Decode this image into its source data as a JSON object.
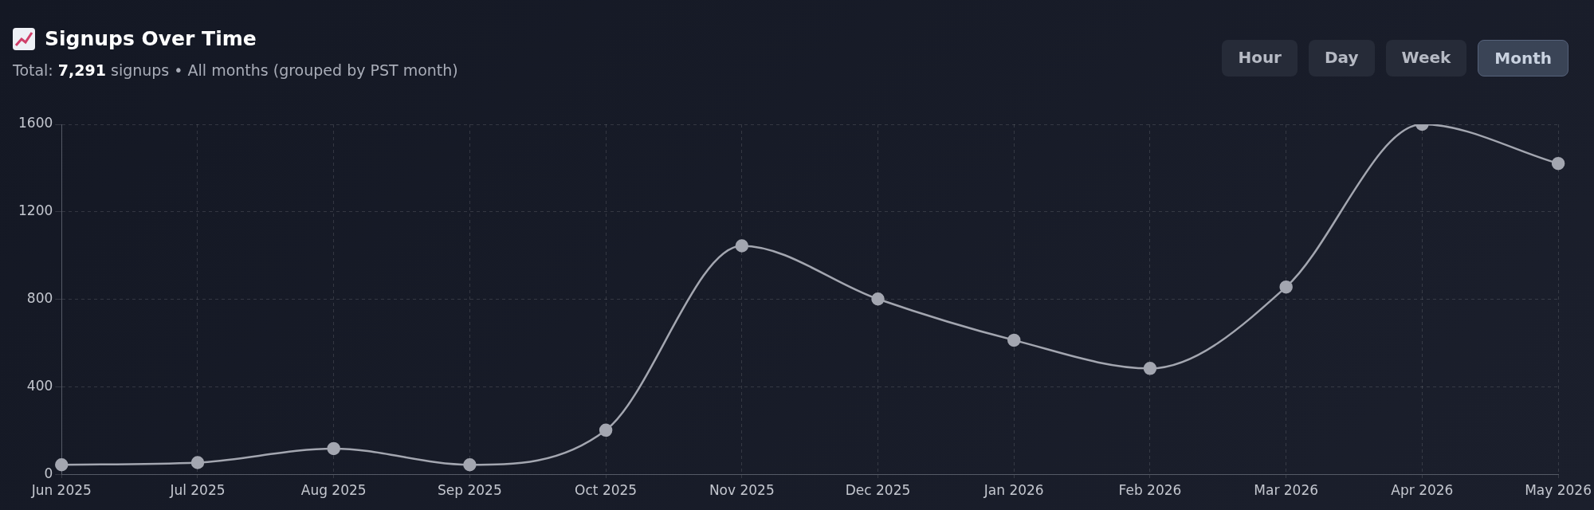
{
  "chart_data": {
    "type": "line",
    "title": "Signups Over Time",
    "subtitle": "Total: 7,291 signups • All months (grouped by PST month)",
    "categories": [
      "Jun 2025",
      "Jul 2025",
      "Aug 2025",
      "Sep 2025",
      "Oct 2025",
      "Nov 2025",
      "Dec 2025",
      "Jan 2026",
      "Feb 2026",
      "Mar 2026",
      "Apr 2026",
      "May 2026"
    ],
    "series": [
      {
        "color": "#a3a6b0",
        "values": [
          45,
          55,
          119,
          45,
          203,
          1045,
          802,
          614,
          485,
          857,
          1600,
          1421
        ]
      }
    ],
    "ylim": [
      0,
      1600
    ],
    "yticks": [
      0,
      400,
      800,
      1200,
      1600
    ],
    "grid": true,
    "marker": "circle",
    "line_style": "solid",
    "legend": false,
    "annotations": [
      "Hour",
      "Day",
      "Week",
      "Month"
    ]
  }
}
